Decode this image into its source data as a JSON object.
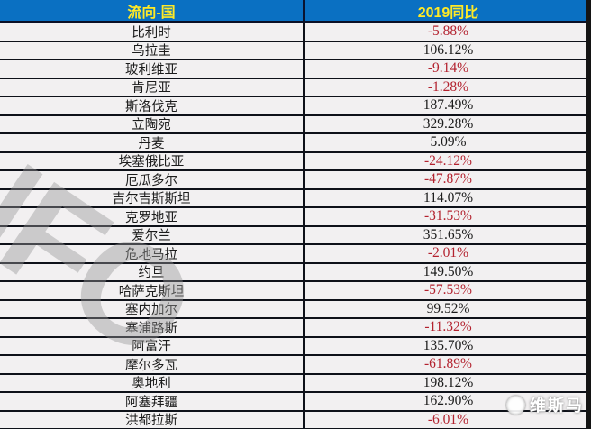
{
  "chart_data": {
    "type": "table",
    "columns": [
      "流向-国",
      "2019同比"
    ],
    "rows": [
      {
        "country": "比利时",
        "yoy": "-5.88%"
      },
      {
        "country": "乌拉圭",
        "yoy": "106.12%"
      },
      {
        "country": "玻利维亚",
        "yoy": "-9.14%"
      },
      {
        "country": "肯尼亚",
        "yoy": "-1.28%"
      },
      {
        "country": "斯洛伐克",
        "yoy": "187.49%"
      },
      {
        "country": "立陶宛",
        "yoy": "329.28%"
      },
      {
        "country": "丹麦",
        "yoy": "5.09%"
      },
      {
        "country": "埃塞俄比亚",
        "yoy": "-24.12%"
      },
      {
        "country": "厄瓜多尔",
        "yoy": "-47.87%"
      },
      {
        "country": "吉尔吉斯斯坦",
        "yoy": "114.07%"
      },
      {
        "country": "克罗地亚",
        "yoy": "-31.53%"
      },
      {
        "country": "爱尔兰",
        "yoy": "351.65%"
      },
      {
        "country": "危地马拉",
        "yoy": "-2.01%"
      },
      {
        "country": "约旦",
        "yoy": "149.50%"
      },
      {
        "country": "哈萨克斯坦",
        "yoy": "-57.53%"
      },
      {
        "country": "塞内加尔",
        "yoy": "99.52%"
      },
      {
        "country": "塞浦路斯",
        "yoy": "-11.32%"
      },
      {
        "country": "阿富汗",
        "yoy": "135.70%"
      },
      {
        "country": "摩尔多瓦",
        "yoy": "-61.89%"
      },
      {
        "country": "奥地利",
        "yoy": "198.12%"
      },
      {
        "country": "阿塞拜疆",
        "yoy": "162.90%"
      },
      {
        "country": "洪都拉斯",
        "yoy": "-6.01%"
      }
    ]
  },
  "watermarks": {
    "diagonal_text": "INFO",
    "logo_text": "维斯马"
  },
  "colors": {
    "header_bg": "#0a70c2",
    "header_text": "#ffe926",
    "row_bg": "#f2f0f1",
    "positive_value": "#1c1c1c",
    "negative_value": "#b3222f"
  }
}
